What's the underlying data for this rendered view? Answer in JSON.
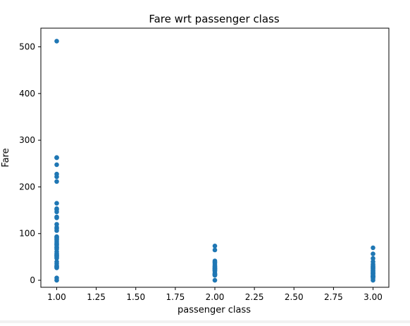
{
  "chart_data": {
    "type": "scatter",
    "title": "Fare wrt passenger class",
    "xlabel": "passenger class",
    "ylabel": "Fare",
    "xlim": [
      0.9,
      3.1
    ],
    "ylim": [
      -15,
      540
    ],
    "xticks": [
      1.0,
      1.25,
      1.5,
      1.75,
      2.0,
      2.25,
      2.5,
      2.75,
      3.0
    ],
    "xtick_labels": [
      "1.00",
      "1.25",
      "1.50",
      "1.75",
      "2.00",
      "2.25",
      "2.50",
      "2.75",
      "3.00"
    ],
    "yticks": [
      0,
      100,
      200,
      300,
      400,
      500
    ],
    "ytick_labels": [
      "0",
      "100",
      "200",
      "300",
      "400",
      "500"
    ],
    "grid": false,
    "marker_color": "#1f77b4",
    "points": [
      {
        "x": 1,
        "y": 512.3
      },
      {
        "x": 1,
        "y": 263
      },
      {
        "x": 1,
        "y": 262.4
      },
      {
        "x": 1,
        "y": 247.5
      },
      {
        "x": 1,
        "y": 227.5
      },
      {
        "x": 1,
        "y": 221.8
      },
      {
        "x": 1,
        "y": 211.5
      },
      {
        "x": 1,
        "y": 164.9
      },
      {
        "x": 1,
        "y": 153.5
      },
      {
        "x": 1,
        "y": 151.6
      },
      {
        "x": 1,
        "y": 146.5
      },
      {
        "x": 1,
        "y": 135.6
      },
      {
        "x": 1,
        "y": 133.7
      },
      {
        "x": 1,
        "y": 120
      },
      {
        "x": 1,
        "y": 113.3
      },
      {
        "x": 1,
        "y": 110.9
      },
      {
        "x": 1,
        "y": 106.4
      },
      {
        "x": 1,
        "y": 93.5
      },
      {
        "x": 1,
        "y": 91.1
      },
      {
        "x": 1,
        "y": 89.1
      },
      {
        "x": 1,
        "y": 86.5
      },
      {
        "x": 1,
        "y": 83.2
      },
      {
        "x": 1,
        "y": 80
      },
      {
        "x": 1,
        "y": 77.3
      },
      {
        "x": 1,
        "y": 75.3
      },
      {
        "x": 1,
        "y": 71.3
      },
      {
        "x": 1,
        "y": 69.3
      },
      {
        "x": 1,
        "y": 66.6
      },
      {
        "x": 1,
        "y": 61.2
      },
      {
        "x": 1,
        "y": 57
      },
      {
        "x": 1,
        "y": 55.9
      },
      {
        "x": 1,
        "y": 53.1
      },
      {
        "x": 1,
        "y": 52
      },
      {
        "x": 1,
        "y": 49.5
      },
      {
        "x": 1,
        "y": 47.1
      },
      {
        "x": 1,
        "y": 39.6
      },
      {
        "x": 1,
        "y": 35.5
      },
      {
        "x": 1,
        "y": 31
      },
      {
        "x": 1,
        "y": 30
      },
      {
        "x": 1,
        "y": 27.7
      },
      {
        "x": 1,
        "y": 26.6
      },
      {
        "x": 1,
        "y": 5
      },
      {
        "x": 1,
        "y": 0
      },
      {
        "x": 2,
        "y": 73.5
      },
      {
        "x": 2,
        "y": 65
      },
      {
        "x": 2,
        "y": 41.6
      },
      {
        "x": 2,
        "y": 39
      },
      {
        "x": 2,
        "y": 36.8
      },
      {
        "x": 2,
        "y": 33
      },
      {
        "x": 2,
        "y": 30
      },
      {
        "x": 2,
        "y": 29
      },
      {
        "x": 2,
        "y": 26.3
      },
      {
        "x": 2,
        "y": 26
      },
      {
        "x": 2,
        "y": 24
      },
      {
        "x": 2,
        "y": 23
      },
      {
        "x": 2,
        "y": 21
      },
      {
        "x": 2,
        "y": 19.5
      },
      {
        "x": 2,
        "y": 15
      },
      {
        "x": 2,
        "y": 13
      },
      {
        "x": 2,
        "y": 12.4
      },
      {
        "x": 2,
        "y": 11.5
      },
      {
        "x": 2,
        "y": 10.5
      },
      {
        "x": 2,
        "y": 0
      },
      {
        "x": 3,
        "y": 69.6
      },
      {
        "x": 3,
        "y": 56.5
      },
      {
        "x": 3,
        "y": 46.9
      },
      {
        "x": 3,
        "y": 39.7
      },
      {
        "x": 3,
        "y": 34.4
      },
      {
        "x": 3,
        "y": 31.4
      },
      {
        "x": 3,
        "y": 29.1
      },
      {
        "x": 3,
        "y": 27.9
      },
      {
        "x": 3,
        "y": 25.5
      },
      {
        "x": 3,
        "y": 24.2
      },
      {
        "x": 3,
        "y": 21.1
      },
      {
        "x": 3,
        "y": 20.2
      },
      {
        "x": 3,
        "y": 18
      },
      {
        "x": 3,
        "y": 16.1
      },
      {
        "x": 3,
        "y": 15.5
      },
      {
        "x": 3,
        "y": 14.5
      },
      {
        "x": 3,
        "y": 13.4
      },
      {
        "x": 3,
        "y": 11.1
      },
      {
        "x": 3,
        "y": 9.5
      },
      {
        "x": 3,
        "y": 8.7
      },
      {
        "x": 3,
        "y": 8.1
      },
      {
        "x": 3,
        "y": 7.9
      },
      {
        "x": 3,
        "y": 7.8
      },
      {
        "x": 3,
        "y": 7.3
      },
      {
        "x": 3,
        "y": 7.2
      },
      {
        "x": 3,
        "y": 6.2
      },
      {
        "x": 3,
        "y": 4
      },
      {
        "x": 3,
        "y": 0
      }
    ]
  }
}
